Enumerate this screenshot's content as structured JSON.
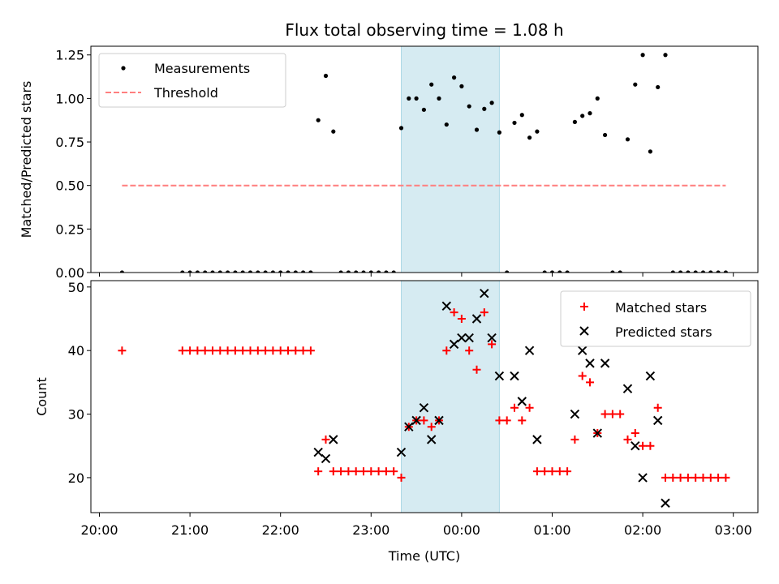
{
  "chart_data": [
    {
      "type": "scatter",
      "title": "Flux total observing time = 1.08 h",
      "ylabel": "Matched/Predicted stars",
      "xlabel": "",
      "xlim": [
        "20:00",
        "03:00"
      ],
      "ylim": [
        0,
        1.3
      ],
      "yticks": [
        "0.00",
        "0.25",
        "0.50",
        "0.75",
        "1.00",
        "1.25"
      ],
      "legend": {
        "position": "top-left",
        "entries": [
          "Measurements",
          "Threshold"
        ]
      },
      "highlight_span": {
        "from": "23:20",
        "to": "00:25",
        "color": "#add8e6"
      },
      "series": [
        {
          "name": "Measurements",
          "marker": "dot",
          "color": "#000000",
          "points": [
            [
              "20:15",
              0
            ],
            [
              "20:55",
              0
            ],
            [
              "21:00",
              0
            ],
            [
              "21:05",
              0
            ],
            [
              "21:10",
              0
            ],
            [
              "21:15",
              0
            ],
            [
              "21:20",
              0
            ],
            [
              "21:25",
              0
            ],
            [
              "21:30",
              0
            ],
            [
              "21:35",
              0
            ],
            [
              "21:40",
              0
            ],
            [
              "21:45",
              0
            ],
            [
              "21:50",
              0
            ],
            [
              "21:55",
              0
            ],
            [
              "22:00",
              0
            ],
            [
              "22:05",
              0
            ],
            [
              "22:10",
              0
            ],
            [
              "22:15",
              0
            ],
            [
              "22:20",
              0
            ],
            [
              "22:25",
              0.875
            ],
            [
              "22:30",
              1.13
            ],
            [
              "22:35",
              0.81
            ],
            [
              "22:40",
              0
            ],
            [
              "22:45",
              0
            ],
            [
              "22:50",
              0
            ],
            [
              "22:55",
              0
            ],
            [
              "23:00",
              0
            ],
            [
              "23:05",
              0
            ],
            [
              "23:10",
              0
            ],
            [
              "23:15",
              0
            ],
            [
              "23:20",
              0.83
            ],
            [
              "23:25",
              1.0
            ],
            [
              "23:30",
              1.0
            ],
            [
              "23:35",
              0.935
            ],
            [
              "23:40",
              1.08
            ],
            [
              "23:45",
              1.0
            ],
            [
              "23:50",
              0.85
            ],
            [
              "23:55",
              1.12
            ],
            [
              "00:00",
              1.07
            ],
            [
              "00:05",
              0.955
            ],
            [
              "00:10",
              0.82
            ],
            [
              "00:15",
              0.94
            ],
            [
              "00:20",
              0.975
            ],
            [
              "00:25",
              0.805
            ],
            [
              "00:30",
              0
            ],
            [
              "00:35",
              0.86
            ],
            [
              "00:40",
              0.905
            ],
            [
              "00:45",
              0.775
            ],
            [
              "00:50",
              0.81
            ],
            [
              "00:55",
              0
            ],
            [
              "01:00",
              0
            ],
            [
              "01:05",
              0
            ],
            [
              "01:10",
              0
            ],
            [
              "01:15",
              0.865
            ],
            [
              "01:20",
              0.9
            ],
            [
              "01:25",
              0.915
            ],
            [
              "01:30",
              1.0
            ],
            [
              "01:35",
              0.79
            ],
            [
              "01:40",
              0
            ],
            [
              "01:45",
              0
            ],
            [
              "01:50",
              0.765
            ],
            [
              "01:55",
              1.08
            ],
            [
              "02:00",
              1.25
            ],
            [
              "02:05",
              0.695
            ],
            [
              "02:10",
              1.065
            ],
            [
              "02:15",
              1.25
            ],
            [
              "02:20",
              0
            ],
            [
              "02:25",
              0
            ],
            [
              "02:30",
              0
            ],
            [
              "02:35",
              0
            ],
            [
              "02:40",
              0
            ],
            [
              "02:45",
              0
            ],
            [
              "02:50",
              0
            ],
            [
              "02:55",
              0
            ]
          ]
        },
        {
          "name": "Threshold",
          "marker": "dashed-line",
          "color": "#ff7f7f",
          "points": [
            [
              "20:15",
              0.5
            ],
            [
              "02:55",
              0.5
            ]
          ]
        }
      ]
    },
    {
      "type": "scatter",
      "title": "",
      "ylabel": "Count",
      "xlabel": "Time (UTC)",
      "xlim": [
        "20:00",
        "03:00"
      ],
      "xticks": [
        "20:00",
        "21:00",
        "22:00",
        "23:00",
        "00:00",
        "01:00",
        "02:00",
        "03:00"
      ],
      "ylim": [
        14.5,
        51
      ],
      "yticks": [
        "20",
        "30",
        "40",
        "50"
      ],
      "legend": {
        "position": "top-right",
        "entries": [
          "Matched stars",
          "Predicted stars"
        ]
      },
      "highlight_span": {
        "from": "23:20",
        "to": "00:25",
        "color": "#add8e6"
      },
      "series": [
        {
          "name": "Matched stars",
          "marker": "plus",
          "color": "#ff0000",
          "points": [
            [
              "20:15",
              40
            ],
            [
              "20:55",
              40
            ],
            [
              "21:00",
              40
            ],
            [
              "21:05",
              40
            ],
            [
              "21:10",
              40
            ],
            [
              "21:15",
              40
            ],
            [
              "21:20",
              40
            ],
            [
              "21:25",
              40
            ],
            [
              "21:30",
              40
            ],
            [
              "21:35",
              40
            ],
            [
              "21:40",
              40
            ],
            [
              "21:45",
              40
            ],
            [
              "21:50",
              40
            ],
            [
              "21:55",
              40
            ],
            [
              "22:00",
              40
            ],
            [
              "22:05",
              40
            ],
            [
              "22:10",
              40
            ],
            [
              "22:15",
              40
            ],
            [
              "22:20",
              40
            ],
            [
              "22:25",
              21
            ],
            [
              "22:30",
              26
            ],
            [
              "22:35",
              21
            ],
            [
              "22:40",
              21
            ],
            [
              "22:45",
              21
            ],
            [
              "22:50",
              21
            ],
            [
              "22:55",
              21
            ],
            [
              "23:00",
              21
            ],
            [
              "23:05",
              21
            ],
            [
              "23:10",
              21
            ],
            [
              "23:15",
              21
            ],
            [
              "23:20",
              20
            ],
            [
              "23:25",
              28
            ],
            [
              "23:30",
              29
            ],
            [
              "23:35",
              29
            ],
            [
              "23:40",
              28
            ],
            [
              "23:45",
              29
            ],
            [
              "23:50",
              40
            ],
            [
              "23:55",
              46
            ],
            [
              "00:00",
              45
            ],
            [
              "00:05",
              40
            ],
            [
              "00:10",
              37
            ],
            [
              "00:15",
              46
            ],
            [
              "00:20",
              41
            ],
            [
              "00:25",
              29
            ],
            [
              "00:30",
              29
            ],
            [
              "00:35",
              31
            ],
            [
              "00:40",
              29
            ],
            [
              "00:45",
              31
            ],
            [
              "00:50",
              21
            ],
            [
              "00:55",
              21
            ],
            [
              "01:00",
              21
            ],
            [
              "01:05",
              21
            ],
            [
              "01:10",
              21
            ],
            [
              "01:15",
              26
            ],
            [
              "01:20",
              36
            ],
            [
              "01:25",
              35
            ],
            [
              "01:30",
              27
            ],
            [
              "01:35",
              30
            ],
            [
              "01:40",
              30
            ],
            [
              "01:45",
              30
            ],
            [
              "01:50",
              26
            ],
            [
              "01:55",
              27
            ],
            [
              "02:00",
              25
            ],
            [
              "02:05",
              25
            ],
            [
              "02:10",
              31
            ],
            [
              "02:15",
              20
            ],
            [
              "02:20",
              20
            ],
            [
              "02:25",
              20
            ],
            [
              "02:30",
              20
            ],
            [
              "02:35",
              20
            ],
            [
              "02:40",
              20
            ],
            [
              "02:45",
              20
            ],
            [
              "02:50",
              20
            ],
            [
              "02:55",
              20
            ]
          ]
        },
        {
          "name": "Predicted stars",
          "marker": "x",
          "color": "#000000",
          "points": [
            [
              "22:25",
              24
            ],
            [
              "22:30",
              23
            ],
            [
              "22:35",
              26
            ],
            [
              "23:20",
              24
            ],
            [
              "23:25",
              28
            ],
            [
              "23:30",
              29
            ],
            [
              "23:35",
              31
            ],
            [
              "23:40",
              26
            ],
            [
              "23:45",
              29
            ],
            [
              "23:50",
              47
            ],
            [
              "23:55",
              41
            ],
            [
              "00:00",
              42
            ],
            [
              "00:05",
              42
            ],
            [
              "00:10",
              45
            ],
            [
              "00:15",
              49
            ],
            [
              "00:20",
              42
            ],
            [
              "00:25",
              36
            ],
            [
              "00:35",
              36
            ],
            [
              "00:40",
              32
            ],
            [
              "00:45",
              40
            ],
            [
              "00:50",
              26
            ],
            [
              "01:15",
              30
            ],
            [
              "01:20",
              40
            ],
            [
              "01:25",
              38
            ],
            [
              "01:30",
              27
            ],
            [
              "01:35",
              38
            ],
            [
              "01:50",
              34
            ],
            [
              "01:55",
              25
            ],
            [
              "02:00",
              20
            ],
            [
              "02:05",
              36
            ],
            [
              "02:10",
              29
            ],
            [
              "02:15",
              16
            ]
          ]
        }
      ]
    }
  ]
}
